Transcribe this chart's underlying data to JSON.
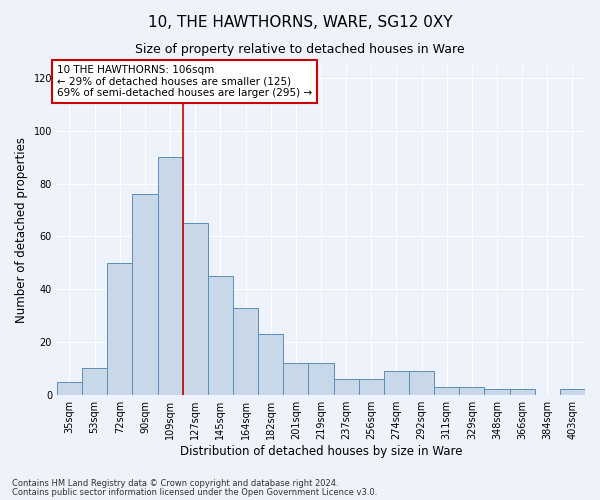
{
  "title": "10, THE HAWTHORNS, WARE, SG12 0XY",
  "subtitle": "Size of property relative to detached houses in Ware",
  "xlabel": "Distribution of detached houses by size in Ware",
  "ylabel": "Number of detached properties",
  "categories": [
    "35sqm",
    "53sqm",
    "72sqm",
    "90sqm",
    "109sqm",
    "127sqm",
    "145sqm",
    "164sqm",
    "182sqm",
    "201sqm",
    "219sqm",
    "237sqm",
    "256sqm",
    "274sqm",
    "292sqm",
    "311sqm",
    "329sqm",
    "348sqm",
    "366sqm",
    "384sqm",
    "403sqm"
  ],
  "values": [
    5,
    10,
    50,
    76,
    90,
    65,
    45,
    33,
    23,
    12,
    12,
    6,
    6,
    9,
    9,
    3,
    3,
    2,
    2,
    0,
    2
  ],
  "bar_color": "#c8d8e8",
  "bar_edge_color": "#5b8db8",
  "vline_x_index": 4,
  "vline_color": "#cc0000",
  "annotation_text": "10 THE HAWTHORNS: 106sqm\n← 29% of detached houses are smaller (125)\n69% of semi-detached houses are larger (295) →",
  "annotation_box_color": "#ffffff",
  "annotation_box_edge_color": "#cc0000",
  "ylim": [
    0,
    125
  ],
  "yticks": [
    0,
    20,
    40,
    60,
    80,
    100,
    120
  ],
  "footer_line1": "Contains HM Land Registry data © Crown copyright and database right 2024.",
  "footer_line2": "Contains public sector information licensed under the Open Government Licence v3.0.",
  "background_color": "#eef2fb",
  "grid_color": "#ffffff"
}
